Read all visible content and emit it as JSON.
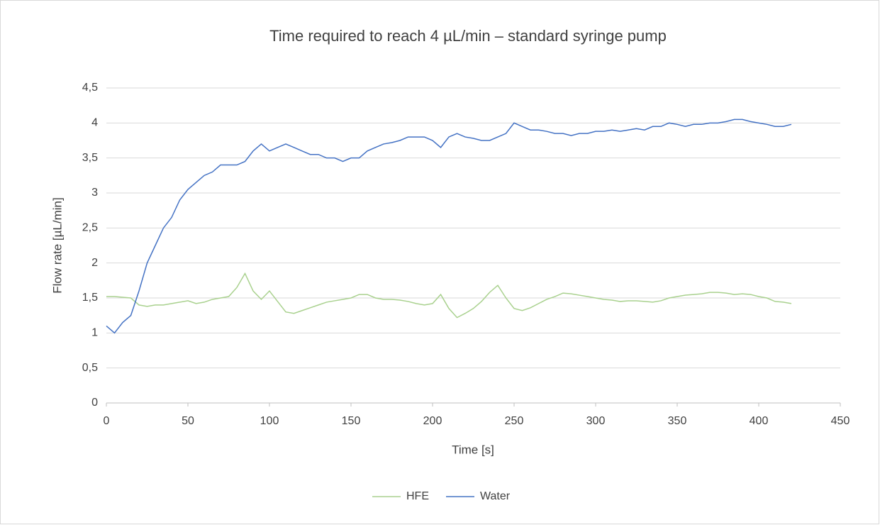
{
  "chart_data": {
    "type": "line",
    "title": "Time required to reach 4 µL/min – standard syringe pump",
    "xlabel": "Time [s]",
    "ylabel": "Flow rate [µL/min]",
    "x": [
      0,
      5,
      10,
      15,
      20,
      25,
      30,
      35,
      40,
      45,
      50,
      55,
      60,
      65,
      70,
      75,
      80,
      85,
      90,
      95,
      100,
      105,
      110,
      115,
      120,
      125,
      130,
      135,
      140,
      145,
      150,
      155,
      160,
      165,
      170,
      175,
      180,
      185,
      190,
      195,
      200,
      205,
      210,
      215,
      220,
      225,
      230,
      235,
      240,
      245,
      250,
      255,
      260,
      265,
      270,
      275,
      280,
      285,
      290,
      295,
      300,
      305,
      310,
      315,
      320,
      325,
      330,
      335,
      340,
      345,
      350,
      355,
      360,
      365,
      370,
      375,
      380,
      385,
      390,
      395,
      400,
      405,
      410,
      415,
      420
    ],
    "series": [
      {
        "name": "HFE",
        "color": "#a9d18e",
        "values": [
          1.52,
          1.52,
          1.51,
          1.5,
          1.4,
          1.38,
          1.4,
          1.4,
          1.42,
          1.44,
          1.46,
          1.42,
          1.44,
          1.48,
          1.5,
          1.52,
          1.65,
          1.85,
          1.6,
          1.48,
          1.6,
          1.45,
          1.3,
          1.28,
          1.32,
          1.36,
          1.4,
          1.44,
          1.46,
          1.48,
          1.5,
          1.55,
          1.55,
          1.5,
          1.48,
          1.48,
          1.47,
          1.45,
          1.42,
          1.4,
          1.42,
          1.55,
          1.35,
          1.22,
          1.28,
          1.35,
          1.45,
          1.58,
          1.68,
          1.5,
          1.35,
          1.32,
          1.36,
          1.42,
          1.48,
          1.52,
          1.57,
          1.56,
          1.54,
          1.52,
          1.5,
          1.48,
          1.47,
          1.45,
          1.46,
          1.46,
          1.45,
          1.44,
          1.46,
          1.5,
          1.52,
          1.54,
          1.55,
          1.56,
          1.58,
          1.58,
          1.57,
          1.55,
          1.56,
          1.55,
          1.52,
          1.5,
          1.45,
          1.44,
          1.42
        ]
      },
      {
        "name": "Water",
        "color": "#4472c4",
        "values": [
          1.1,
          1.0,
          1.15,
          1.25,
          1.6,
          2.0,
          2.25,
          2.5,
          2.65,
          2.9,
          3.05,
          3.15,
          3.25,
          3.3,
          3.4,
          3.4,
          3.4,
          3.45,
          3.6,
          3.7,
          3.6,
          3.65,
          3.7,
          3.65,
          3.6,
          3.55,
          3.55,
          3.5,
          3.5,
          3.45,
          3.5,
          3.5,
          3.6,
          3.65,
          3.7,
          3.72,
          3.75,
          3.8,
          3.8,
          3.8,
          3.75,
          3.65,
          3.8,
          3.85,
          3.8,
          3.78,
          3.75,
          3.75,
          3.8,
          3.85,
          4.0,
          3.95,
          3.9,
          3.9,
          3.88,
          3.85,
          3.85,
          3.82,
          3.85,
          3.85,
          3.88,
          3.88,
          3.9,
          3.88,
          3.9,
          3.92,
          3.9,
          3.95,
          3.95,
          4.0,
          3.98,
          3.95,
          3.98,
          3.98,
          4.0,
          4.0,
          4.02,
          4.05,
          4.05,
          4.02,
          4.0,
          3.98,
          3.95,
          3.95,
          3.98
        ]
      }
    ],
    "xlim": [
      0,
      450
    ],
    "xticks": [
      0,
      50,
      100,
      150,
      200,
      250,
      300,
      350,
      400,
      450
    ],
    "ylim": [
      0,
      4.5
    ],
    "yticks": [
      0,
      {
        "value": 0.5,
        "label": "0,5"
      },
      1,
      {
        "value": 1.5,
        "label": "1,5"
      },
      2,
      {
        "value": 2.5,
        "label": "2,5"
      },
      3,
      {
        "value": 3.5,
        "label": "3,5"
      },
      4,
      {
        "value": 4.5,
        "label": "4,5"
      }
    ],
    "grid": true,
    "legend": "bottom"
  }
}
